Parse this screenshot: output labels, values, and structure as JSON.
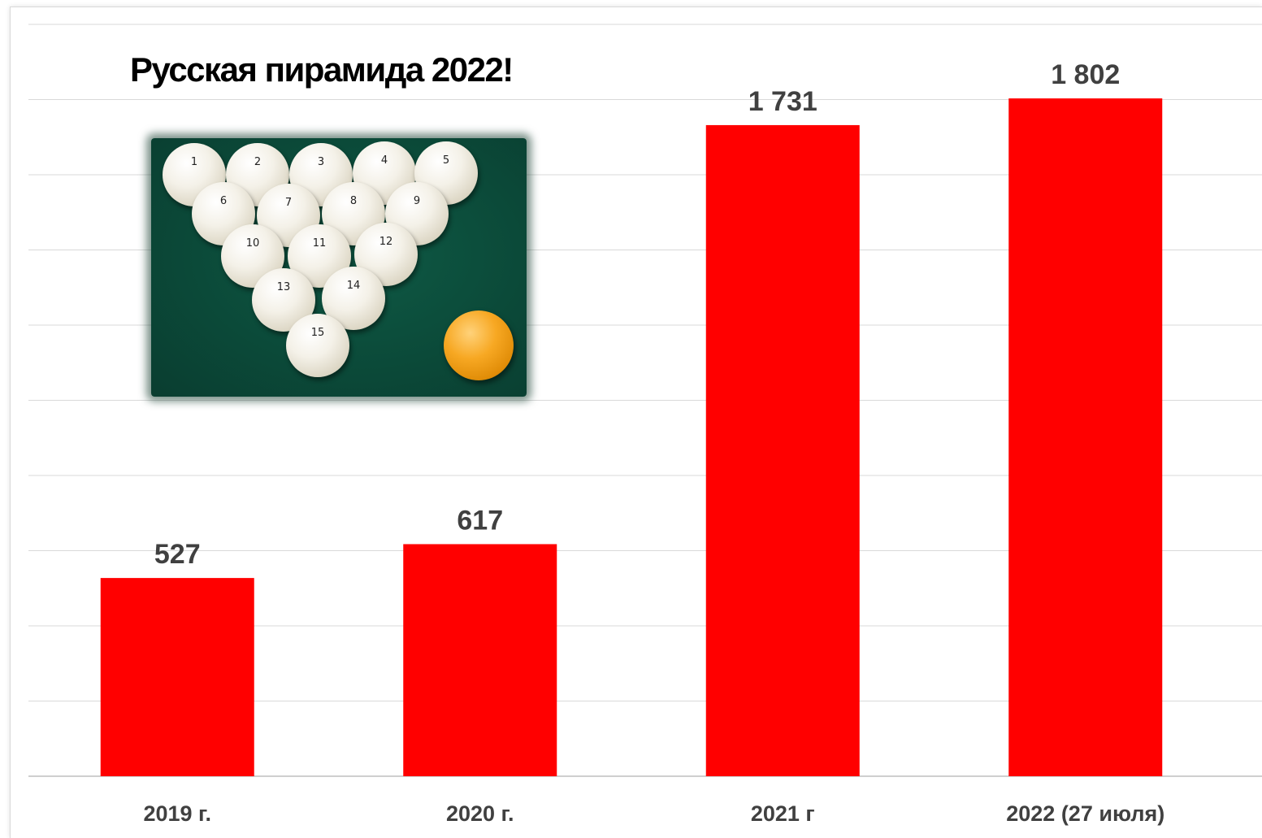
{
  "chart_data": {
    "type": "bar",
    "title": "Русская пирамида 2022!",
    "categories": [
      "2019 г.",
      "2020 г.",
      "2021 г",
      "2022 (27 июля)"
    ],
    "values": [
      527,
      617,
      1731,
      1802
    ],
    "value_labels": [
      "527",
      "617",
      "1 731",
      "1 802"
    ],
    "ylim": [
      0,
      1800
    ],
    "grid": true,
    "bar_color": "#ff0000",
    "grid_color": "#d9d9d9",
    "xlabel": "",
    "ylabel": ""
  },
  "image": {
    "balls": [
      "1",
      "2",
      "3",
      "4",
      "5",
      "6",
      "7",
      "8",
      "9",
      "10",
      "11",
      "12",
      "13",
      "14",
      "15"
    ],
    "icon": "billiard-pyramid-photo"
  }
}
